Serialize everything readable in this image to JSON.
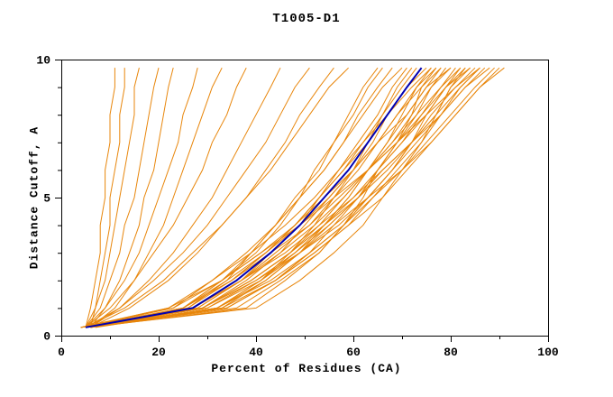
{
  "chart_data": {
    "type": "line",
    "title": "T1005-D1",
    "xlabel": "Percent of Residues (CA)",
    "ylabel": "Distance Cutoff, A",
    "xlim": [
      0,
      100
    ],
    "ylim": [
      0,
      10
    ],
    "grid": false,
    "legend": false,
    "x_ticks": {
      "major": [
        0,
        20,
        40,
        60,
        80,
        100
      ],
      "minor": [
        10,
        30,
        50,
        70,
        90
      ],
      "labels": [
        "0",
        "20",
        "40",
        "60",
        "80",
        "100"
      ]
    },
    "y_ticks": {
      "major": [
        0,
        5,
        10
      ],
      "minor": [
        1,
        2,
        3,
        4,
        6,
        7,
        8,
        9
      ],
      "labels": [
        "0",
        "5",
        "10"
      ]
    },
    "colors": {
      "model_lines": "#e8860b",
      "highlight_line": "#0000b2",
      "axis": "#000000",
      "background": "#ffffff"
    },
    "y_samples": [
      0.3,
      1,
      2,
      3,
      4,
      5,
      6,
      7,
      8,
      9,
      9.7
    ],
    "highlight_series": {
      "name": "highlighted-model",
      "x_at_y": [
        5,
        27,
        36,
        43,
        49,
        54,
        59,
        63,
        67,
        71,
        74
      ]
    },
    "model_series": [
      [
        5,
        6,
        7,
        8,
        8,
        9,
        9,
        10,
        10,
        11,
        11
      ],
      [
        6,
        7,
        8,
        9,
        10,
        10,
        11,
        12,
        12,
        13,
        13
      ],
      [
        5,
        7,
        9,
        10,
        11,
        12,
        13,
        14,
        15,
        15,
        16
      ],
      [
        5,
        8,
        10,
        12,
        13,
        15,
        16,
        17,
        18,
        19,
        20
      ],
      [
        6,
        9,
        12,
        14,
        16,
        17,
        19,
        20,
        21,
        22,
        23
      ],
      [
        5,
        9,
        13,
        16,
        18,
        20,
        22,
        24,
        25,
        27,
        28
      ],
      [
        6,
        11,
        15,
        18,
        21,
        23,
        25,
        27,
        29,
        31,
        33
      ],
      [
        5,
        10,
        15,
        19,
        23,
        26,
        29,
        31,
        34,
        36,
        38
      ],
      [
        6,
        12,
        18,
        23,
        27,
        31,
        34,
        37,
        40,
        43,
        45
      ],
      [
        5,
        12,
        19,
        25,
        30,
        34,
        38,
        42,
        45,
        48,
        51
      ],
      [
        6,
        14,
        22,
        28,
        33,
        38,
        42,
        46,
        49,
        53,
        56
      ],
      [
        5,
        13,
        21,
        27,
        33,
        38,
        43,
        47,
        51,
        55,
        59
      ],
      [
        4,
        26,
        34,
        39,
        44,
        49,
        52,
        56,
        59,
        62,
        65
      ],
      [
        6,
        25,
        33,
        39,
        44,
        48,
        53,
        56,
        60,
        63,
        66
      ],
      [
        5,
        25,
        33,
        40,
        45,
        49,
        54,
        58,
        61,
        65,
        68
      ],
      [
        4,
        23,
        31,
        38,
        44,
        49,
        54,
        58,
        62,
        66,
        70
      ],
      [
        5,
        28,
        37,
        43,
        49,
        53,
        57,
        61,
        65,
        68,
        71
      ],
      [
        6,
        32,
        41,
        47,
        52,
        56,
        60,
        63,
        66,
        69,
        72
      ],
      [
        5,
        26,
        35,
        42,
        48,
        53,
        58,
        62,
        66,
        70,
        73
      ],
      [
        4,
        29,
        38,
        45,
        50,
        55,
        60,
        64,
        67,
        71,
        74
      ],
      [
        6,
        25,
        34,
        42,
        48,
        53,
        58,
        63,
        67,
        71,
        75
      ],
      [
        5,
        33,
        42,
        49,
        54,
        59,
        63,
        67,
        70,
        73,
        76
      ],
      [
        4,
        22,
        31,
        39,
        46,
        52,
        57,
        62,
        67,
        72,
        76
      ],
      [
        5,
        28,
        37,
        44,
        51,
        56,
        61,
        65,
        69,
        73,
        77
      ],
      [
        6,
        38,
        46,
        53,
        58,
        62,
        65,
        69,
        72,
        74,
        77
      ],
      [
        6,
        32,
        41,
        48,
        54,
        59,
        63,
        67,
        71,
        75,
        78
      ],
      [
        4,
        25,
        35,
        42,
        49,
        55,
        60,
        65,
        69,
        74,
        78
      ],
      [
        5,
        34,
        44,
        51,
        56,
        61,
        65,
        69,
        73,
        76,
        79
      ],
      [
        6,
        29,
        39,
        47,
        53,
        58,
        63,
        68,
        72,
        76,
        80
      ],
      [
        4,
        23,
        33,
        41,
        48,
        54,
        60,
        65,
        71,
        75,
        80
      ],
      [
        5,
        32,
        42,
        49,
        55,
        61,
        65,
        70,
        74,
        78,
        81
      ],
      [
        6,
        27,
        37,
        45,
        52,
        58,
        63,
        68,
        73,
        78,
        82
      ],
      [
        5,
        36,
        45,
        53,
        58,
        63,
        68,
        72,
        75,
        79,
        82
      ],
      [
        4,
        29,
        39,
        47,
        54,
        60,
        65,
        70,
        75,
        79,
        83
      ],
      [
        5,
        40,
        49,
        56,
        62,
        66,
        70,
        74,
        77,
        80,
        83
      ],
      [
        6,
        34,
        44,
        51,
        58,
        63,
        68,
        72,
        77,
        80,
        84
      ],
      [
        5,
        25,
        35,
        43,
        51,
        57,
        63,
        69,
        74,
        79,
        84
      ],
      [
        4,
        30,
        40,
        48,
        55,
        61,
        67,
        72,
        76,
        81,
        85
      ],
      [
        6,
        29,
        39,
        47,
        54,
        61,
        66,
        72,
        77,
        82,
        86
      ],
      [
        5,
        34,
        44,
        52,
        59,
        64,
        69,
        74,
        78,
        82,
        86
      ],
      [
        4,
        22,
        33,
        41,
        49,
        56,
        63,
        69,
        75,
        81,
        86
      ],
      [
        4,
        30,
        41,
        49,
        56,
        63,
        68,
        73,
        78,
        83,
        87
      ],
      [
        6,
        27,
        37,
        46,
        53,
        60,
        66,
        72,
        78,
        83,
        88
      ],
      [
        5,
        32,
        43,
        51,
        58,
        64,
        70,
        75,
        80,
        85,
        89
      ],
      [
        7,
        33,
        44,
        52,
        59,
        66,
        71,
        76,
        81,
        86,
        90
      ],
      [
        4,
        29,
        40,
        49,
        57,
        63,
        70,
        76,
        81,
        86,
        91
      ]
    ]
  }
}
